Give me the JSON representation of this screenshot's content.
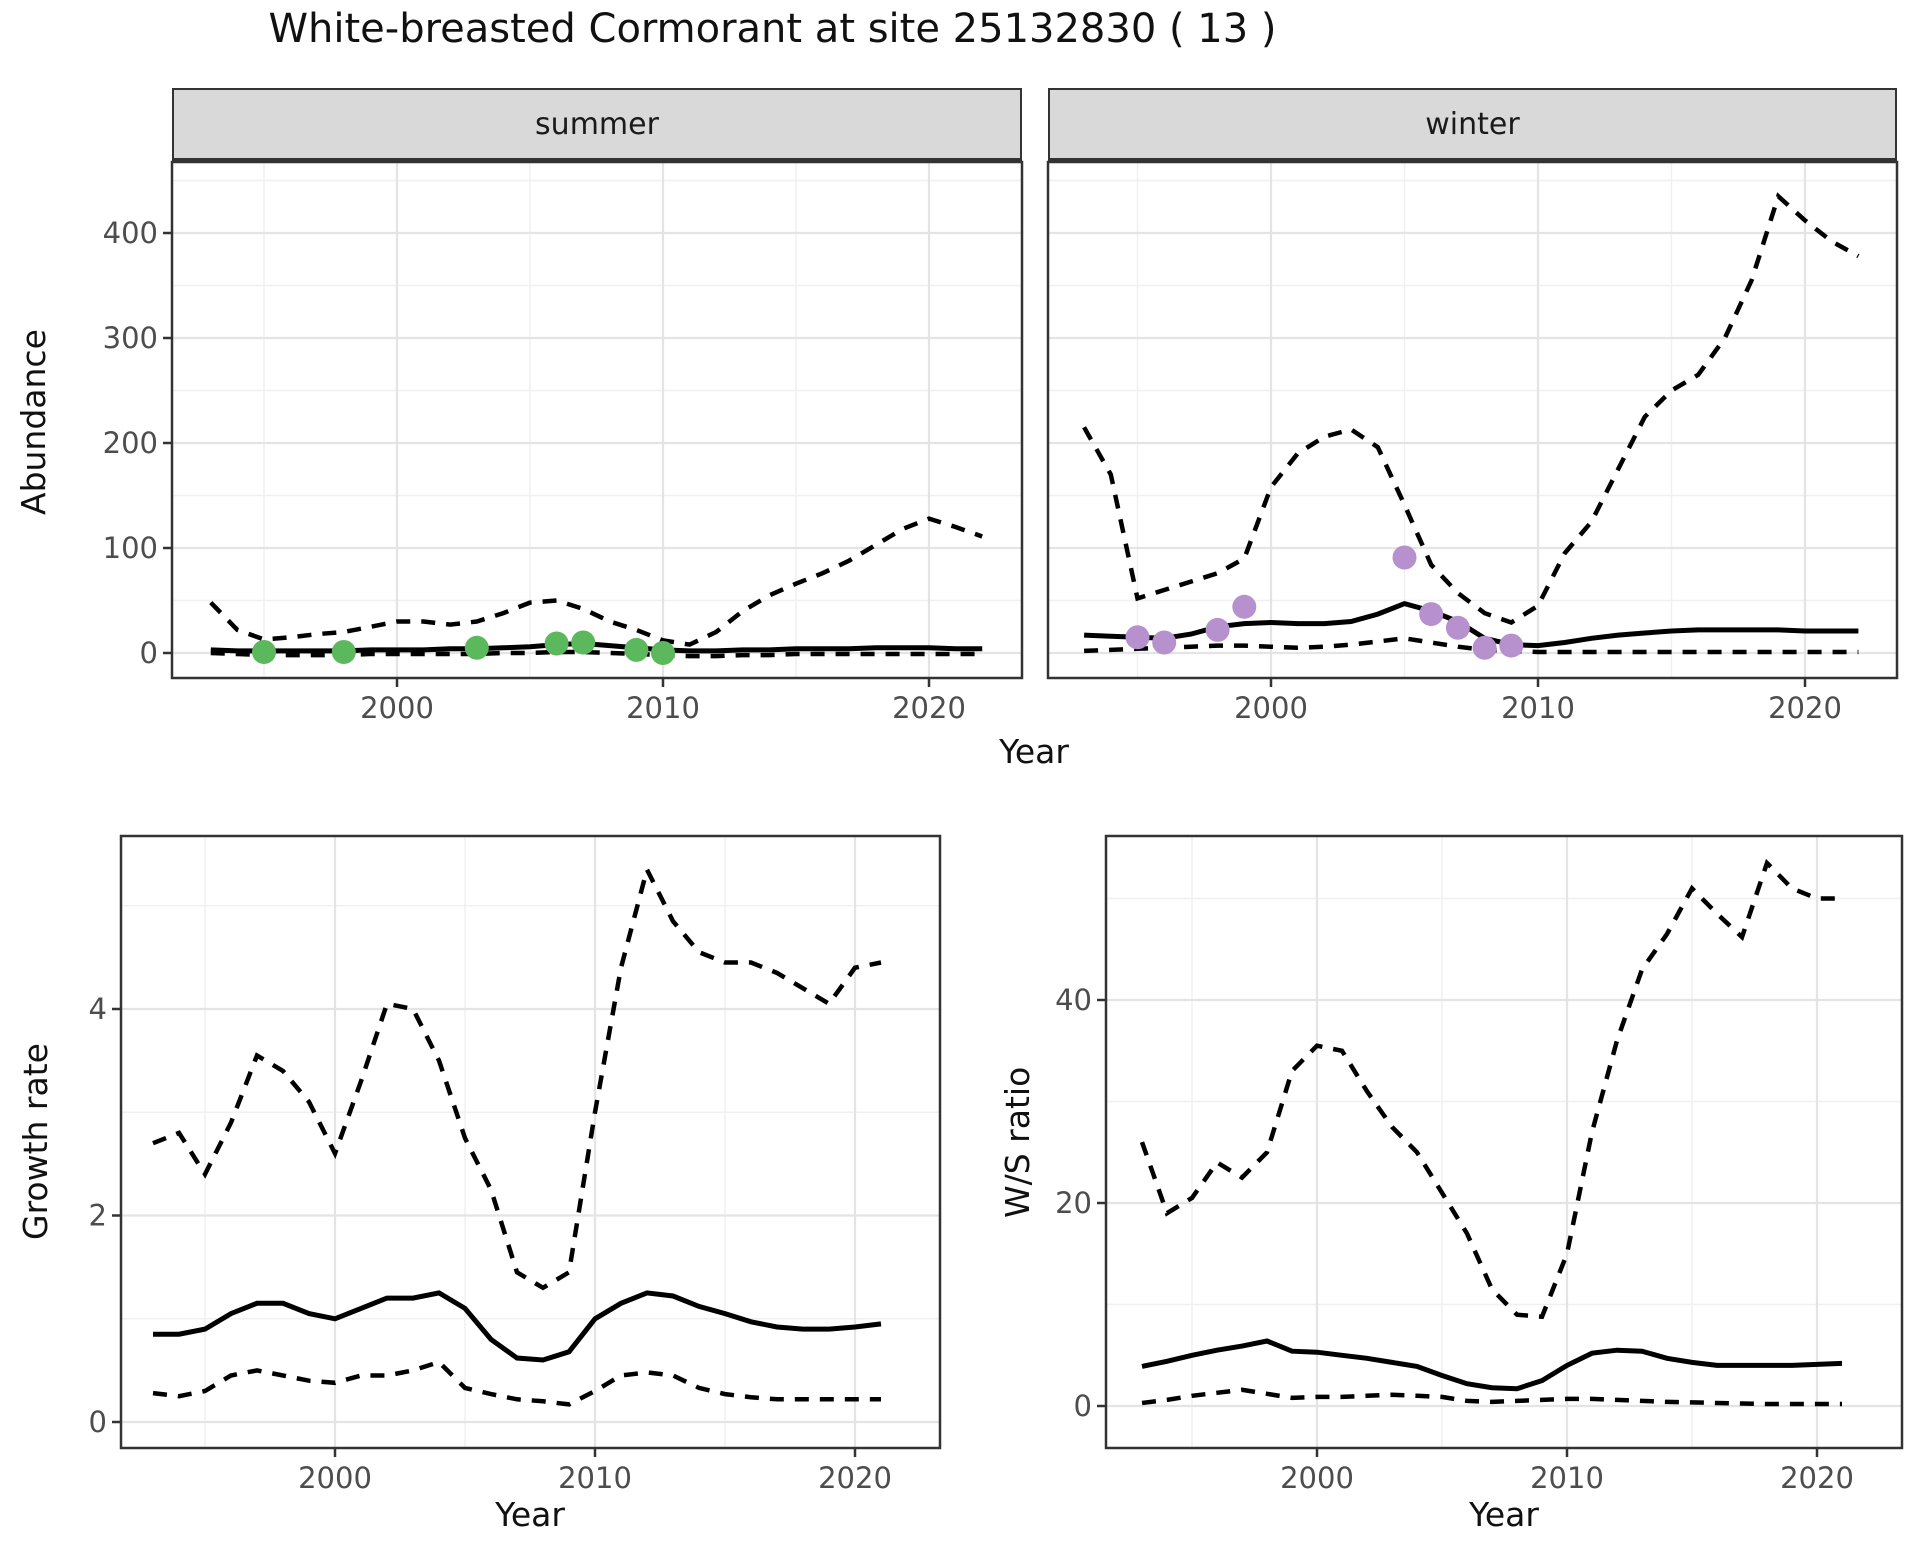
{
  "title": "White-breasted Cormorant at site 25132830 ( 13 )",
  "colors": {
    "summer_points": "#5CB85C",
    "winter_points": "#B691CD",
    "line": "#000000",
    "grid_major": "#E4E4E4",
    "grid_minor": "#F0F0F0",
    "strip_fill": "#D9D9D9",
    "panel_border": "#333333",
    "tick_text": "#4D4D4D"
  },
  "facets": {
    "summer_label": "summer",
    "winter_label": "winter"
  },
  "axis_titles": {
    "top_y": "Abundance",
    "top_x": "Year",
    "growth_y": "Growth rate",
    "growth_x": "Year",
    "ws_y": "W/S ratio",
    "ws_x": "Year"
  },
  "chart_data": [
    {
      "panel": "summer",
      "type": "line",
      "title": "summer facet: abundance vs year",
      "xlabel": "Year",
      "ylabel": "Abundance",
      "xlim": [
        1991.5,
        2023.5
      ],
      "ylim": [
        -25,
        468
      ],
      "grid": true,
      "legend_position": "none",
      "x": [
        1993,
        1994,
        1995,
        1996,
        1997,
        1998,
        1999,
        2000,
        2001,
        2002,
        2003,
        2004,
        2005,
        2006,
        2007,
        2008,
        2009,
        2010,
        2011,
        2012,
        2013,
        2014,
        2015,
        2016,
        2017,
        2018,
        2019,
        2020,
        2021,
        2022
      ],
      "series": [
        {
          "name": "lower_ci",
          "style": "dashed",
          "values": [
            0,
            -1,
            -2,
            -2,
            -2,
            -2,
            -1,
            -1,
            -1,
            -1,
            -1,
            0,
            0,
            1,
            1,
            0,
            -1,
            -2,
            -3,
            -3,
            -2,
            -2,
            -1,
            -1,
            -1,
            -1,
            -1,
            -1,
            -1,
            -1
          ]
        },
        {
          "name": "upper_ci",
          "style": "dashed",
          "values": [
            48,
            22,
            13,
            15,
            18,
            20,
            25,
            30,
            30,
            27,
            30,
            38,
            48,
            50,
            42,
            30,
            22,
            12,
            8,
            20,
            40,
            55,
            66,
            76,
            88,
            103,
            118,
            128,
            120,
            111
          ]
        },
        {
          "name": "mean",
          "style": "solid",
          "values": [
            3,
            2,
            2,
            2,
            2,
            2,
            3,
            3,
            3,
            4,
            4,
            5,
            6,
            8,
            9,
            7,
            5,
            3,
            2,
            2,
            3,
            3,
            4,
            4,
            4,
            5,
            5,
            5,
            4,
            4
          ]
        }
      ],
      "points": {
        "name": "observed-counts",
        "color_key": "summer_points",
        "x": [
          1995,
          1998,
          2003,
          2006,
          2007,
          2009,
          2010
        ],
        "y": [
          1,
          1,
          5,
          9,
          10,
          3,
          0
        ]
      },
      "x_ticks": {
        "major": [
          2000,
          2010,
          2020
        ],
        "minor": [
          1995,
          2005,
          2015
        ],
        "labels": [
          "2000",
          "2010",
          "2020"
        ]
      },
      "y_ticks": {
        "major": [
          0,
          100,
          200,
          300,
          400
        ],
        "minor": [
          50,
          150,
          250,
          350,
          450
        ],
        "labels": [
          "0",
          "100",
          "200",
          "300",
          "400"
        ],
        "show_labels": true
      }
    },
    {
      "panel": "winter",
      "type": "line",
      "title": "winter facet: abundance vs year",
      "xlabel": "Year",
      "ylabel": "Abundance",
      "xlim": [
        1991.5,
        2023.5
      ],
      "ylim": [
        -25,
        468
      ],
      "grid": true,
      "legend_position": "none",
      "x": [
        1993,
        1994,
        1995,
        1996,
        1997,
        1998,
        1999,
        2000,
        2001,
        2002,
        2003,
        2004,
        2005,
        2006,
        2007,
        2008,
        2009,
        2010,
        2011,
        2012,
        2013,
        2014,
        2015,
        2016,
        2017,
        2018,
        2019,
        2020,
        2021,
        2022
      ],
      "series": [
        {
          "name": "lower_ci",
          "style": "dashed",
          "values": [
            2,
            3,
            4,
            5,
            6,
            7,
            7,
            6,
            5,
            6,
            8,
            11,
            14,
            10,
            6,
            3,
            2,
            1,
            1,
            1,
            1,
            1,
            1,
            1,
            1,
            1,
            1,
            1,
            1,
            1
          ]
        },
        {
          "name": "upper_ci",
          "style": "dashed",
          "values": [
            215,
            170,
            52,
            60,
            68,
            76,
            90,
            158,
            190,
            206,
            213,
            196,
            141,
            84,
            57,
            38,
            29,
            45,
            95,
            125,
            175,
            225,
            250,
            265,
            300,
            355,
            435,
            412,
            392,
            378
          ]
        },
        {
          "name": "mean",
          "style": "solid",
          "values": [
            17,
            16,
            15,
            14,
            18,
            25,
            28,
            29,
            28,
            28,
            30,
            37,
            47,
            40,
            30,
            14,
            8,
            7,
            10,
            14,
            17,
            19,
            21,
            22,
            22,
            22,
            22,
            21,
            21,
            21
          ]
        }
      ],
      "points": {
        "name": "observed-counts",
        "color_key": "winter_points",
        "x": [
          1995,
          1996,
          1998,
          1999,
          2005,
          2006,
          2007,
          2008,
          2009
        ],
        "y": [
          15,
          10,
          22,
          44,
          91,
          37,
          24,
          5,
          7
        ]
      },
      "x_ticks": {
        "major": [
          2000,
          2010,
          2020
        ],
        "minor": [
          1995,
          2005,
          2015
        ],
        "labels": [
          "2000",
          "2010",
          "2020"
        ]
      },
      "y_ticks": {
        "major": [
          0,
          100,
          200,
          300,
          400
        ],
        "minor": [
          50,
          150,
          250,
          350,
          450
        ],
        "labels": [
          "0",
          "100",
          "200",
          "300",
          "400"
        ],
        "show_labels": false
      }
    },
    {
      "panel": "growth",
      "type": "line",
      "title": "Growth rate vs year",
      "xlabel": "Year",
      "ylabel": "Growth rate",
      "xlim": [
        1991.8,
        2023.3
      ],
      "ylim": [
        -0.15,
        5.75
      ],
      "grid": true,
      "legend_position": "none",
      "x": [
        1993,
        1994,
        1995,
        1996,
        1997,
        1998,
        1999,
        2000,
        2001,
        2002,
        2003,
        2004,
        2005,
        2006,
        2007,
        2008,
        2009,
        2010,
        2011,
        2012,
        2013,
        2014,
        2015,
        2016,
        2017,
        2018,
        2019,
        2020,
        2021
      ],
      "series": [
        {
          "name": "lower_ci",
          "style": "dashed",
          "values": [
            0.28,
            0.25,
            0.3,
            0.45,
            0.5,
            0.45,
            0.4,
            0.38,
            0.45,
            0.45,
            0.5,
            0.58,
            0.33,
            0.27,
            0.22,
            0.2,
            0.17,
            0.3,
            0.45,
            0.48,
            0.45,
            0.33,
            0.27,
            0.24,
            0.22,
            0.22,
            0.22,
            0.22,
            0.22
          ]
        },
        {
          "name": "upper_ci",
          "style": "dashed",
          "values": [
            2.7,
            2.8,
            2.4,
            2.9,
            3.55,
            3.4,
            3.1,
            2.6,
            3.3,
            4.05,
            4.0,
            3.5,
            2.75,
            2.25,
            1.45,
            1.3,
            1.45,
            3.0,
            4.4,
            5.35,
            4.85,
            4.55,
            4.45,
            4.45,
            4.35,
            4.2,
            4.05,
            4.4,
            4.45
          ]
        },
        {
          "name": "mean",
          "style": "solid",
          "values": [
            0.85,
            0.85,
            0.9,
            1.05,
            1.15,
            1.15,
            1.05,
            1.0,
            1.1,
            1.2,
            1.2,
            1.25,
            1.1,
            0.8,
            0.62,
            0.6,
            0.68,
            1.0,
            1.15,
            1.25,
            1.22,
            1.12,
            1.05,
            0.97,
            0.92,
            0.9,
            0.9,
            0.92,
            0.95
          ]
        }
      ],
      "points": null,
      "x_ticks": {
        "major": [
          2000,
          2010,
          2020
        ],
        "minor": [
          1995,
          2005,
          2015
        ],
        "labels": [
          "2000",
          "2010",
          "2020"
        ]
      },
      "y_ticks": {
        "major": [
          0,
          2,
          4
        ],
        "minor": [
          1,
          3,
          5
        ],
        "labels": [
          "0",
          "2",
          "4"
        ],
        "show_labels": true
      }
    },
    {
      "panel": "ws",
      "type": "line",
      "title": "Winter/Summer ratio vs year",
      "xlabel": "Year",
      "ylabel": "W/S ratio",
      "xlim": [
        1991.6,
        2023.4
      ],
      "ylim": [
        -2,
        58
      ],
      "grid": true,
      "legend_position": "none",
      "x": [
        1993,
        1994,
        1995,
        1996,
        1997,
        1998,
        1999,
        2000,
        2001,
        2002,
        2003,
        2004,
        2005,
        2006,
        2007,
        2008,
        2009,
        2010,
        2011,
        2012,
        2013,
        2014,
        2015,
        2016,
        2017,
        2018,
        2019,
        2020,
        2021
      ],
      "series": [
        {
          "name": "lower_ci",
          "style": "dashed",
          "values": [
            0.3,
            0.6,
            1.0,
            1.3,
            1.6,
            1.2,
            0.8,
            0.9,
            0.9,
            1.0,
            1.1,
            1.0,
            0.9,
            0.5,
            0.4,
            0.5,
            0.6,
            0.7,
            0.7,
            0.6,
            0.5,
            0.4,
            0.35,
            0.3,
            0.25,
            0.2,
            0.2,
            0.2,
            0.2
          ]
        },
        {
          "name": "upper_ci",
          "style": "dashed",
          "values": [
            26,
            19,
            20.5,
            24,
            22.5,
            25,
            33,
            35.5,
            35,
            31,
            27.5,
            25,
            21,
            17,
            11.5,
            9,
            8.8,
            15,
            27,
            36,
            43,
            46.5,
            51,
            48.5,
            46.2,
            53.5,
            51,
            50,
            50
          ]
        },
        {
          "name": "mean",
          "style": "solid",
          "values": [
            3.9,
            4.4,
            5.0,
            5.5,
            5.9,
            6.4,
            5.4,
            5.3,
            5.0,
            4.7,
            4.3,
            3.9,
            3.0,
            2.2,
            1.8,
            1.7,
            2.5,
            4.0,
            5.2,
            5.5,
            5.4,
            4.7,
            4.3,
            4.0,
            4.0,
            4.0,
            4.0,
            4.1,
            4.2
          ]
        }
      ],
      "points": null,
      "x_ticks": {
        "major": [
          2000,
          2010,
          2020
        ],
        "minor": [
          1995,
          2005,
          2015
        ],
        "labels": [
          "2000",
          "2010",
          "2020"
        ]
      },
      "y_ticks": {
        "major": [
          0,
          20,
          40
        ],
        "minor": [
          10,
          30,
          50
        ],
        "labels": [
          "0",
          "20",
          "40"
        ],
        "show_labels": true
      }
    }
  ]
}
